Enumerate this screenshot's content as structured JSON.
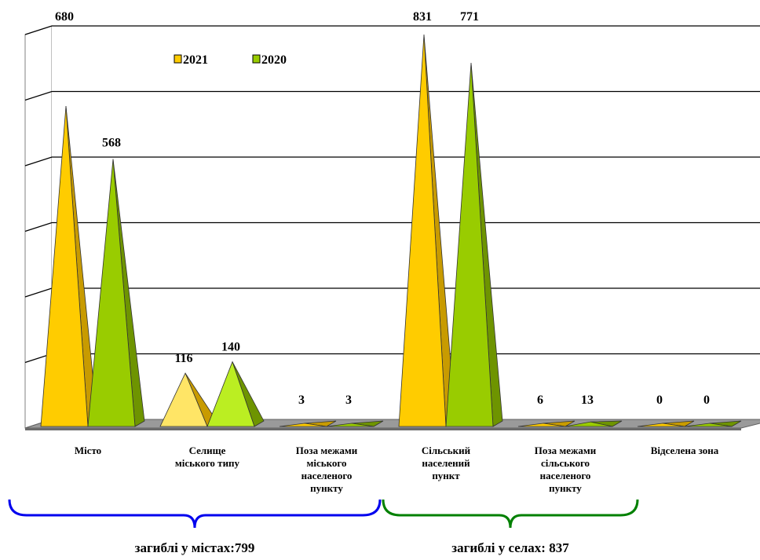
{
  "chart_data": {
    "type": "bar",
    "style": "3d-pyramid",
    "categories": [
      [
        "Місто"
      ],
      [
        "Селище",
        "міського типу"
      ],
      [
        "Поза межами",
        "міського",
        "населеного",
        "пункту"
      ],
      [
        "Сільський",
        "населений",
        "пункт"
      ],
      [
        "Поза межами",
        "сільського",
        "населеного",
        "пункту"
      ],
      [
        "Відселена зона"
      ]
    ],
    "series": [
      {
        "name": "2021",
        "values": [
          680,
          116,
          3,
          831,
          6,
          0
        ],
        "color": "#FFCC00",
        "highlight": "#FFE566",
        "side": "#C89B00"
      },
      {
        "name": "2020",
        "values": [
          568,
          140,
          3,
          771,
          13,
          0
        ],
        "color": "#99CC00",
        "highlight": "#BBEE22",
        "side": "#6E9400"
      }
    ],
    "ylim": [
      0,
      831
    ],
    "grid": true,
    "legend": "top-left",
    "groups": [
      {
        "label": "загиблі у містах:799",
        "color": "#0000EE"
      },
      {
        "label": "загиблі у селах: 837",
        "color": "#008000"
      }
    ]
  }
}
